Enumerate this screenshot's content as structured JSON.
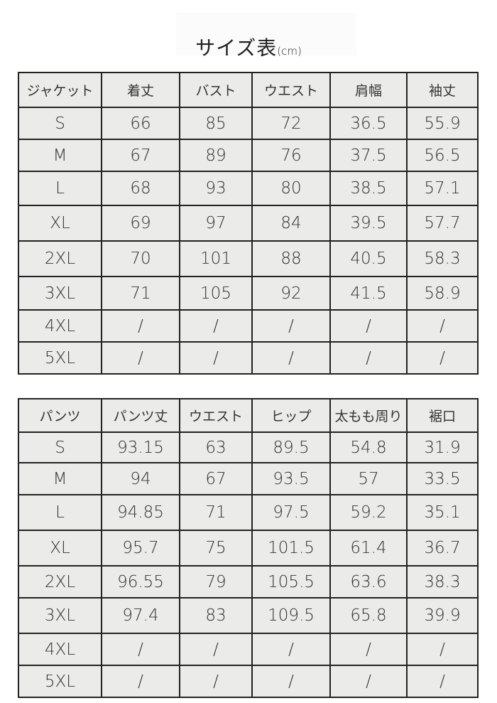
{
  "title": "サイズ表",
  "title_unit": "(cm)",
  "jacket": {
    "headers": [
      "ジャケット",
      "着丈",
      "バスト",
      "ウエスト",
      "肩幅",
      "袖丈"
    ],
    "rows": [
      [
        "S",
        "66",
        "85",
        "72",
        "36.5",
        "55.9"
      ],
      [
        "M",
        "67",
        "89",
        "76",
        "37.5",
        "56.5"
      ],
      [
        "L",
        "68",
        "93",
        "80",
        "38.5",
        "57.1"
      ],
      [
        "XL",
        "69",
        "97",
        "84",
        "39.5",
        "57.7"
      ],
      [
        "2XL",
        "70",
        "101",
        "88",
        "40.5",
        "58.3"
      ],
      [
        "3XL",
        "71",
        "105",
        "92",
        "41.5",
        "58.9"
      ],
      [
        "4XL",
        "/",
        "/",
        "/",
        "/",
        "/"
      ],
      [
        "5XL",
        "/",
        "/",
        "/",
        "/",
        "/"
      ]
    ]
  },
  "pants": {
    "headers": [
      "パンツ",
      "パンツ丈",
      "ウエスト",
      "ヒップ",
      "太もも周り",
      "裾口"
    ],
    "rows": [
      [
        "S",
        "93.15",
        "63",
        "89.5",
        "54.8",
        "31.9"
      ],
      [
        "M",
        "94",
        "67",
        "93.5",
        "57",
        "33.5"
      ],
      [
        "L",
        "94.85",
        "71",
        "97.5",
        "59.2",
        "35.1"
      ],
      [
        "XL",
        "95.7",
        "75",
        "101.5",
        "61.4",
        "36.7"
      ],
      [
        "2XL",
        "96.55",
        "79",
        "105.5",
        "63.6",
        "38.3"
      ],
      [
        "3XL",
        "97.4",
        "83",
        "109.5",
        "65.8",
        "39.9"
      ],
      [
        "4XL",
        "/",
        "/",
        "/",
        "/",
        "/"
      ],
      [
        "5XL",
        "/",
        "/",
        "/",
        "/",
        "/"
      ]
    ]
  }
}
